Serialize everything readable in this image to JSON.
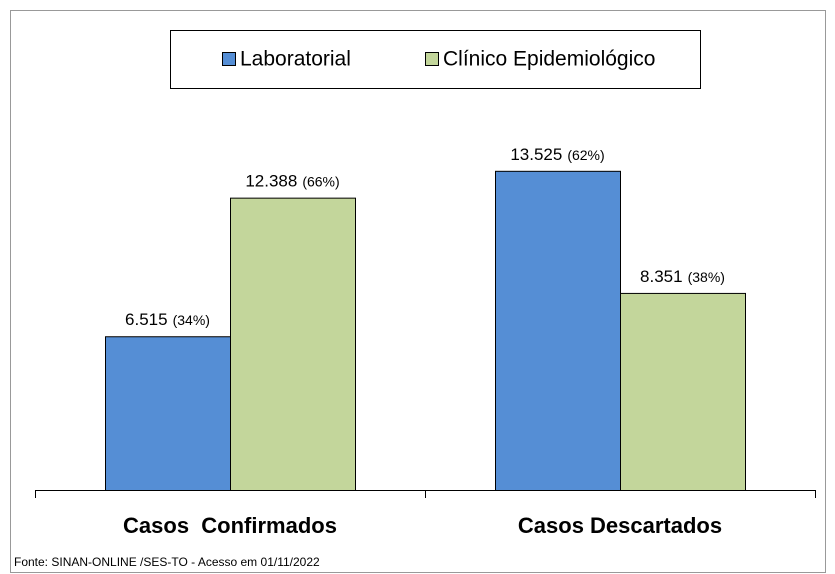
{
  "chart_data": {
    "type": "bar",
    "categories": [
      "Casos  Confirmados",
      "Casos Descartados"
    ],
    "series": [
      {
        "name": "Laboratorial",
        "color": "#558ed5",
        "values": [
          6515,
          13525
        ],
        "value_labels": [
          "6.515",
          "13.525"
        ],
        "share_labels": [
          "(34%)",
          "(62%)"
        ]
      },
      {
        "name": "Clínico Epidemiológico",
        "color": "#c3d69b",
        "values": [
          12388,
          8351
        ],
        "value_labels": [
          "12.388",
          "8.351"
        ],
        "share_labels": [
          "(66%)",
          "(38%)"
        ]
      }
    ],
    "ylim": [
      0,
      15000
    ],
    "legend": "top",
    "source": "Fonte: SINAN-ONLINE /SES-TO - Acesso em  01/11/2022"
  }
}
